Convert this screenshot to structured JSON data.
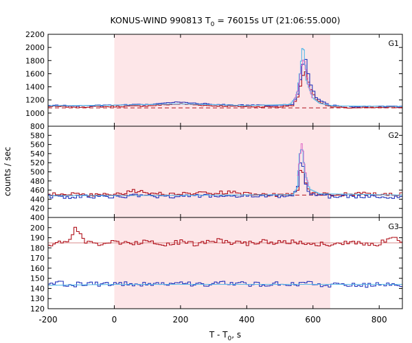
{
  "chart_data": {
    "type": "line",
    "title_prefix": "KONUS-WIND 990813 T",
    "title_sub": "0",
    "title_suffix": " = 76015s UT (21:06:55.000)",
    "xlabel_prefix": "T - T",
    "xlabel_sub": "0",
    "xlabel_suffix": ", s",
    "ylabel": "counts / sec",
    "xlim": [
      -200,
      870
    ],
    "xticks": [
      -200,
      0,
      200,
      400,
      600,
      800
    ],
    "shaded_interval": [
      0,
      652
    ],
    "colors": {
      "red": "#b0101a",
      "blue": "#2233bb",
      "cyan": "#55b8e8",
      "pink": "#e070c8",
      "shade": "#fde6e8"
    },
    "panels": [
      {
        "name": "G1",
        "ylim": [
          800,
          2200
        ],
        "yticks": [
          800,
          1000,
          1200,
          1400,
          1600,
          1800,
          2000,
          2200
        ],
        "ytick_labels": [
          "800",
          "1000",
          "1200",
          "1400",
          "1600",
          "1800",
          "2000",
          "2200"
        ],
        "background_level": 1080,
        "series": [
          {
            "color": "red",
            "x": [
              -210,
              -100,
              0,
              100,
              200,
              300,
              400,
              500,
              540,
              555,
              565,
              575,
              590,
              610,
              650,
              700,
              800,
              870
            ],
            "y": [
              1100,
              1095,
              1100,
              1110,
              1140,
              1110,
              1100,
              1095,
              1120,
              1250,
              1480,
              1680,
              1400,
              1200,
              1100,
              1080,
              1085,
              1090
            ]
          },
          {
            "color": "blue",
            "x": [
              -210,
              -100,
              0,
              100,
              200,
              300,
              400,
              500,
              540,
              555,
              565,
              575,
              590,
              610,
              650,
              700,
              800,
              870
            ],
            "y": [
              1120,
              1110,
              1120,
              1130,
              1170,
              1130,
              1120,
              1115,
              1140,
              1300,
              1600,
              1900,
              1480,
              1230,
              1120,
              1100,
              1100,
              1100
            ]
          },
          {
            "color": "cyan",
            "x": [
              -210,
              0,
              200,
              400,
              530,
              550,
              560,
              570,
              580,
              600,
              620,
              660,
              870
            ],
            "y": [
              1110,
              1120,
              1140,
              1115,
              1130,
              1250,
              1600,
              2080,
              1500,
              1230,
              1150,
              1110,
              1100
            ]
          },
          {
            "color": "pink",
            "x": [
              540,
              555,
              565,
              572,
              585,
              600
            ],
            "y": [
              1150,
              1350,
              1700,
              1850,
              1450,
              1200
            ]
          }
        ]
      },
      {
        "name": "G2",
        "ylim": [
          400,
          600
        ],
        "yticks": [
          400,
          420,
          440,
          460,
          480,
          500,
          520,
          540,
          560,
          580
        ],
        "ytick_labels": [
          "400",
          "420",
          "440",
          "460",
          "480",
          "500",
          "520",
          "540",
          "560",
          "580"
        ],
        "background_level": 449,
        "series": [
          {
            "color": "red",
            "x": [
              -210,
              -150,
              -100,
              0,
              60,
              150,
              250,
              350,
              450,
              540,
              555,
              565,
              575,
              590,
              650,
              750,
              870
            ],
            "y": [
              448,
              453,
              449,
              450,
              458,
              451,
              453,
              455,
              449,
              450,
              458,
              520,
              478,
              455,
              450,
              452,
              451
            ]
          },
          {
            "color": "blue",
            "x": [
              -210,
              -150,
              -100,
              0,
              60,
              150,
              250,
              350,
              450,
              540,
              555,
              565,
              575,
              590,
              650,
              750,
              870
            ],
            "y": [
              447,
              444,
              446,
              445,
              448,
              446,
              447,
              447,
              446,
              447,
              470,
              545,
              480,
              452,
              446,
              446,
              445
            ]
          },
          {
            "color": "cyan",
            "x": [
              -210,
              0,
              300,
              540,
              552,
              560,
              567,
              575,
              590,
              620,
              870
            ],
            "y": [
              448,
              448,
              449,
              450,
              465,
              540,
              555,
              500,
              462,
              452,
              449
            ]
          },
          {
            "color": "pink",
            "x": [
              552,
              560,
              567,
              575,
              585
            ],
            "y": [
              480,
              530,
              567,
              510,
              470
            ]
          }
        ]
      },
      {
        "name": "G3",
        "ylim": [
          120,
          210
        ],
        "yticks": [
          120,
          130,
          140,
          150,
          160,
          170,
          180,
          190,
          200
        ],
        "ytick_labels": [
          "120",
          "130",
          "140",
          "150",
          "160",
          "170",
          "180",
          "190",
          "200"
        ],
        "background_level": 185,
        "series": [
          {
            "color": "red",
            "x": [
              -210,
              -170,
              -130,
              -120,
              -90,
              -50,
              0,
              50,
              100,
              150,
              200,
              250,
              300,
              350,
              400,
              450,
              500,
              550,
              600,
              650,
              700,
              750,
              800,
              840,
              870
            ],
            "y": [
              183,
              185,
              188,
              201,
              186,
              184,
              186,
              184,
              187,
              183,
              186,
              183,
              188,
              185,
              184,
              187,
              185,
              186,
              184,
              184,
              185,
              185,
              184,
              190,
              187
            ]
          },
          {
            "color": "blue",
            "x": [
              -210,
              -170,
              -130,
              -100,
              -50,
              0,
              50,
              100,
              150,
              200,
              250,
              300,
              350,
              400,
              450,
              500,
              550,
              600,
              650,
              700,
              750,
              800,
              840,
              870
            ],
            "y": [
              144,
              146,
              143,
              145,
              144,
              145,
              144,
              145,
              144,
              146,
              144,
              144,
              146,
              144,
              144,
              145,
              144,
              145,
              143,
              144,
              143,
              144,
              145,
              144
            ]
          },
          {
            "color": "cyan",
            "x": [
              -210,
              0,
              400,
              870
            ],
            "y": [
              143,
              144,
              144,
              144
            ]
          }
        ]
      }
    ]
  }
}
